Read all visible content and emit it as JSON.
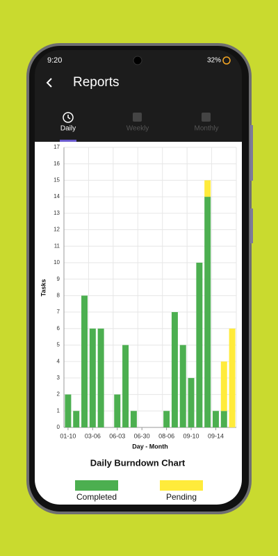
{
  "status_bar": {
    "time": "9:20",
    "battery": "32%"
  },
  "header": {
    "title": "Reports"
  },
  "tabs": [
    "Daily",
    "Weekly",
    "Monthly"
  ],
  "chart_data": {
    "type": "stacked_bar",
    "title": "Daily Burndown Chart",
    "x_label": "Day - Month",
    "y_label": "Tasks",
    "categories": [
      "01-10",
      null,
      null,
      "03-06",
      null,
      null,
      "06-03",
      null,
      null,
      "06-30",
      null,
      null,
      "08-06",
      null,
      null,
      "09-10",
      null,
      null,
      "09-14",
      null,
      null
    ],
    "series": [
      {
        "name": "Completed",
        "color": "#4caf50",
        "values": [
          2,
          1,
          8,
          6,
          6,
          0,
          2,
          5,
          1,
          0,
          0,
          0,
          1,
          7,
          5,
          3,
          10,
          14,
          1,
          1,
          0
        ]
      },
      {
        "name": "Pending",
        "color": "#ffeb3b",
        "values": [
          0,
          0,
          0,
          0,
          0,
          0,
          0,
          0,
          0,
          0,
          0,
          0,
          0,
          0,
          0,
          0,
          0,
          1,
          0,
          3,
          6
        ]
      }
    ],
    "ylim": [
      0,
      17
    ],
    "yticks": [
      0,
      1,
      2,
      3,
      4,
      5,
      6,
      7,
      8,
      9,
      10,
      11,
      12,
      13,
      14,
      15,
      16,
      17
    ],
    "grid": true,
    "legend": "bottom"
  }
}
